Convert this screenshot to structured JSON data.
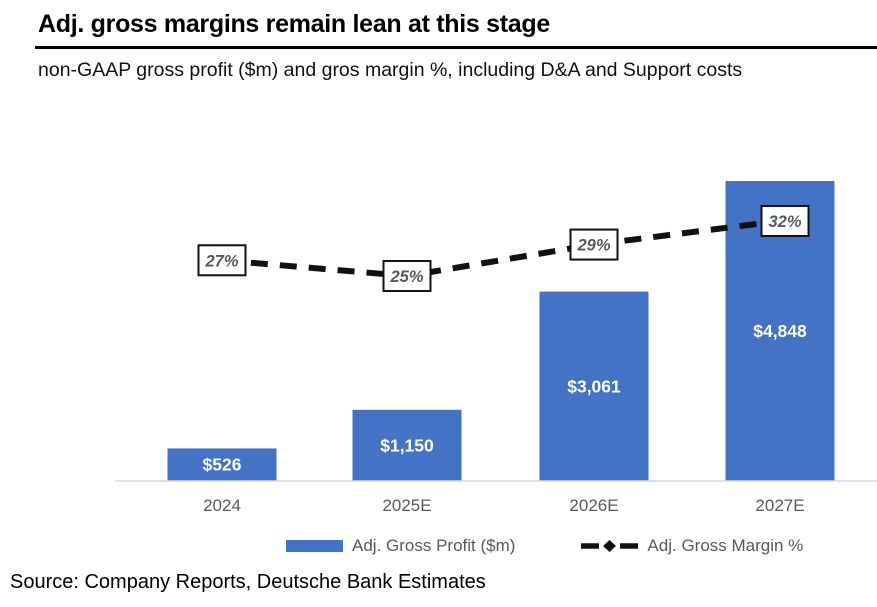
{
  "header": {
    "title": "Adj. gross margins remain lean at this stage",
    "subtitle": "non-GAAP gross profit ($m) and gros margin %, including D&A and Support costs"
  },
  "chart_data": {
    "type": "bar",
    "categories": [
      "2024",
      "2025E",
      "2026E",
      "2027E"
    ],
    "series": [
      {
        "name": "Adj. Gross Profit ($m)",
        "type": "bar",
        "values": [
          526,
          1150,
          3061,
          4848
        ],
        "labels": [
          "$526",
          "$1,150",
          "$3,061",
          "$4,848"
        ],
        "color": "#4472C4"
      },
      {
        "name": "Adj. Gross Margin %",
        "type": "line",
        "values": [
          27,
          25,
          29,
          32
        ],
        "labels": [
          "27%",
          "25%",
          "29%",
          "32%"
        ],
        "color": "#111111",
        "line_style": "dashed",
        "marker": "diamond"
      }
    ],
    "title": "Adj. gross margins remain lean at this stage",
    "xlabel": "",
    "ylabel": "",
    "value_axis_visible": false,
    "gridlines": false,
    "legend_position": "bottom"
  },
  "legend": {
    "items": [
      {
        "label": "Adj. Gross Profit ($m)",
        "swatch": "blue-bar"
      },
      {
        "label": "Adj. Gross Margin %",
        "swatch": "black-dashed-line-diamond"
      }
    ]
  },
  "source": "Source: Company Reports, Deutsche Bank Estimates",
  "colors": {
    "bar": "#4472C4",
    "line": "#111111",
    "muted_text": "#595959",
    "axis_line": "#D9D9D9",
    "bar_value_text": "#FFFFFF",
    "percent_box_bg": "#FFFFFF",
    "percent_box_border": "#111111"
  }
}
